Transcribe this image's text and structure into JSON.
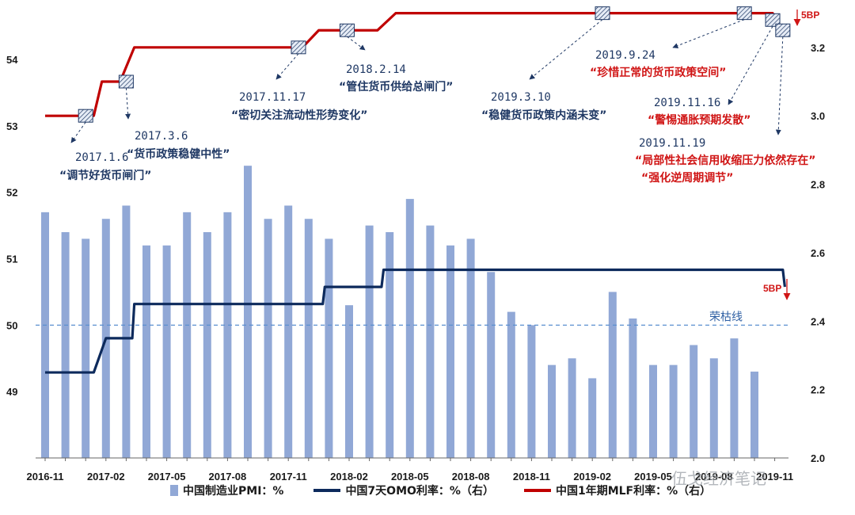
{
  "chart_data": {
    "type": "bar+line",
    "x_ticks": [
      "2016-11",
      "2017-02",
      "2017-05",
      "2017-08",
      "2017-11",
      "2018-02",
      "2018-05",
      "2018-08",
      "2018-11",
      "2019-02",
      "2019-05",
      "2019-08",
      "2019-11"
    ],
    "months": [
      "2016-11",
      "2016-12",
      "2017-01",
      "2017-02",
      "2017-03",
      "2017-04",
      "2017-05",
      "2017-06",
      "2017-07",
      "2017-08",
      "2017-09",
      "2017-10",
      "2017-11",
      "2017-12",
      "2018-01",
      "2018-02",
      "2018-03",
      "2018-04",
      "2018-05",
      "2018-06",
      "2018-07",
      "2018-08",
      "2018-09",
      "2018-10",
      "2018-11",
      "2018-12",
      "2019-01",
      "2019-02",
      "2019-03",
      "2019-04",
      "2019-05",
      "2019-06",
      "2019-07",
      "2019-08",
      "2019-09",
      "2019-10",
      "2019-11"
    ],
    "pmi": {
      "name": "中国制造业PMI：%",
      "color": "#91a8d6",
      "values": [
        51.7,
        51.4,
        51.3,
        51.6,
        51.8,
        51.2,
        51.2,
        51.7,
        51.4,
        51.7,
        52.4,
        51.6,
        51.8,
        51.6,
        51.3,
        50.3,
        51.5,
        51.4,
        51.9,
        51.5,
        51.2,
        51.3,
        50.8,
        50.2,
        50.0,
        49.4,
        49.5,
        49.2,
        50.5,
        50.1,
        49.4,
        49.4,
        49.7,
        49.5,
        49.8,
        49.3,
        null
      ]
    },
    "left_axis": {
      "ylim": [
        48.0,
        54.8
      ],
      "ticks": [
        "49",
        "50",
        "51",
        "52",
        "53",
        "54"
      ]
    },
    "right_axis": {
      "ylim": [
        2.0,
        3.32
      ],
      "ticks": [
        "2.0",
        "2.2",
        "2.4",
        "2.6",
        "2.8",
        "3.0",
        "3.2"
      ]
    },
    "omo": {
      "name": "中国7天OMO利率：%（右）",
      "color": "#0d2a5c",
      "steps": [
        {
          "x": 0.0,
          "y": 2.25
        },
        {
          "x": 2.4,
          "y": 2.25
        },
        {
          "x": 3.0,
          "y": 2.35
        },
        {
          "x": 4.3,
          "y": 2.35
        },
        {
          "x": 4.4,
          "y": 2.45
        },
        {
          "x": 13.7,
          "y": 2.45
        },
        {
          "x": 13.8,
          "y": 2.5
        },
        {
          "x": 16.6,
          "y": 2.5
        },
        {
          "x": 16.7,
          "y": 2.55
        },
        {
          "x": 36.4,
          "y": 2.55
        },
        {
          "x": 36.5,
          "y": 2.5
        }
      ]
    },
    "mlf": {
      "name": "中国1年期MLF利率：%（右）",
      "color": "#c00000",
      "steps": [
        {
          "x": 0.0,
          "y": 3.0
        },
        {
          "x": 2.4,
          "y": 3.0
        },
        {
          "x": 2.8,
          "y": 3.1
        },
        {
          "x": 3.7,
          "y": 3.1
        },
        {
          "x": 4.4,
          "y": 3.2
        },
        {
          "x": 12.7,
          "y": 3.2
        },
        {
          "x": 13.5,
          "y": 3.25
        },
        {
          "x": 16.4,
          "y": 3.25
        },
        {
          "x": 17.3,
          "y": 3.3
        },
        {
          "x": 35.9,
          "y": 3.3
        },
        {
          "x": 36.3,
          "y": 3.25
        }
      ]
    },
    "reference_line": {
      "label": "荣枯线",
      "value": 50.0
    },
    "annotations": [
      {
        "date": "2017.1.6",
        "text": "“调节好货币闸门”",
        "color": "navy",
        "x": 2.0,
        "y": 3.0
      },
      {
        "date": "2017.3.6",
        "text": "“货币政策稳健中性”",
        "color": "navy",
        "x": 4.0,
        "y": 3.1
      },
      {
        "date": "2017.11.17",
        "text": "“密切关注流动性形势变化”",
        "color": "navy",
        "x": 12.5,
        "y": 3.2
      },
      {
        "date": "2018.2.14",
        "text": "“管住货币供给总闸门”",
        "color": "navy",
        "x": 14.9,
        "y": 3.25
      },
      {
        "date": "2019.3.10",
        "text": "“稳健货币政策内涵未变”",
        "color": "navy",
        "x": 27.5,
        "y": 3.3
      },
      {
        "date": "2019.9.24",
        "text": "“珍惜正常的货币政策空间”",
        "color": "red",
        "x": 34.5,
        "y": 3.3
      },
      {
        "date": "2019.11.16",
        "text": "“警惕通胀预期发散”",
        "color": "red",
        "x": 35.9,
        "y": 3.28
      },
      {
        "date": "2019.11.19",
        "text": "“局部性社会信用收缩压力依然存在”",
        "text2": "“强化逆周期调节”",
        "color": "red",
        "x": 36.4,
        "y": 3.25
      }
    ],
    "cut_labels": [
      "5BP",
      "5BP"
    ]
  },
  "watermark": "伍戈经济笔记"
}
